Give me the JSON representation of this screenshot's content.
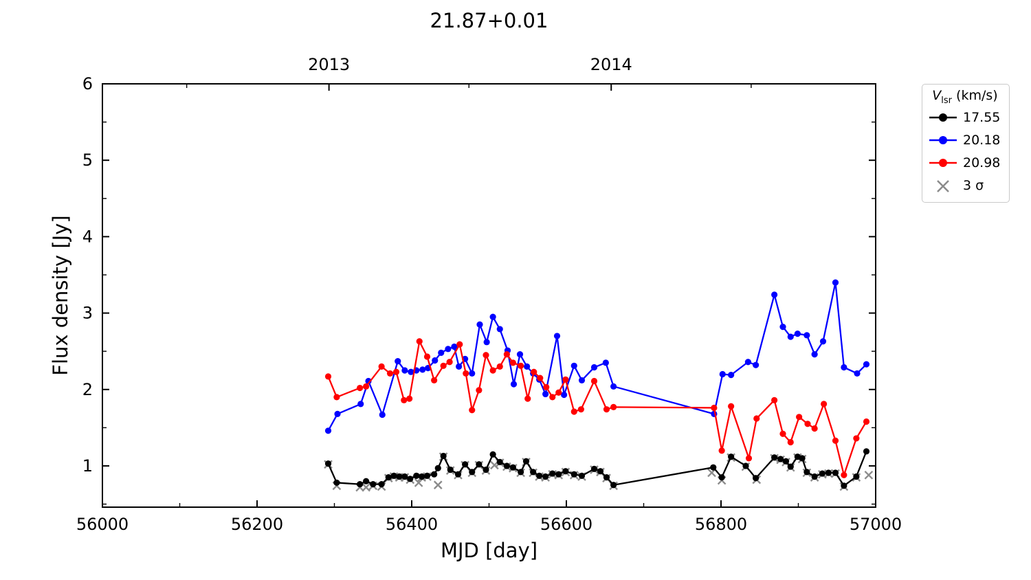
{
  "figure": {
    "title": "21.87+0.01",
    "background": "#ffffff"
  },
  "legend": {
    "title_v": "V",
    "title_sub": "lsr",
    "title_units": " (km/s)",
    "entries": [
      {
        "label": "17.55",
        "color": "#000000",
        "marker": "circle"
      },
      {
        "label": "20.18",
        "color": "#0000ff",
        "marker": "circle"
      },
      {
        "label": "20.98",
        "color": "#ff0000",
        "marker": "circle"
      },
      {
        "label": "3 σ",
        "color": "#8c8c8c",
        "marker": "x"
      }
    ]
  },
  "chart_data": {
    "type": "line",
    "title": "21.87+0.01",
    "xlabel": "MJD [day]",
    "ylabel": "Flux density [Jy]",
    "xlim": [
      56000,
      57000
    ],
    "ylim": [
      0.46,
      6.0
    ],
    "grid": false,
    "legend_position": "outside-right",
    "x_major_ticks": [
      {
        "value": 56000,
        "label": "56000"
      },
      {
        "value": 56200,
        "label": "56200"
      },
      {
        "value": 56400,
        "label": "56400"
      },
      {
        "value": 56600,
        "label": "56600"
      },
      {
        "value": 56800,
        "label": "56800"
      },
      {
        "value": 57000,
        "label": "57000"
      }
    ],
    "x_minor_ticks": [
      56100,
      56300,
      56500,
      56700,
      56900
    ],
    "y_major_ticks": [
      {
        "value": 1,
        "label": "1"
      },
      {
        "value": 2,
        "label": "2"
      },
      {
        "value": 3,
        "label": "3"
      },
      {
        "value": 4,
        "label": "4"
      },
      {
        "value": 5,
        "label": "5"
      },
      {
        "value": 6,
        "label": "6"
      }
    ],
    "y_minor_ticks": [
      0.5,
      1.5,
      2.5,
      3.5,
      4.5,
      5.5
    ],
    "top_major_ticks": [
      {
        "value": 56293,
        "label": "2013"
      },
      {
        "value": 56658,
        "label": "2014"
      }
    ],
    "top_minor_ticks": [
      56109,
      56474,
      56839
    ],
    "series": [
      {
        "name": "17.55",
        "color": "#000000",
        "marker": "circle",
        "line": true,
        "x": [
          56292,
          56303,
          56333,
          56341,
          56350,
          56361,
          56370,
          56377,
          56384,
          56391,
          56398,
          56406,
          56413,
          56420,
          56429,
          56434,
          56441,
          56450,
          56460,
          56469,
          56478,
          56487,
          56496,
          56505,
          56514,
          56523,
          56531,
          56541,
          56548,
          56557,
          56565,
          56573,
          56582,
          56590,
          56599,
          56610,
          56620,
          56636,
          56644,
          56652,
          56661,
          56790,
          56801,
          56813,
          56832,
          56845,
          56869,
          56877,
          56884,
          56890,
          56899,
          56905,
          56911,
          56921,
          56931,
          56939,
          56948,
          56959,
          56975,
          56988
        ],
        "y": [
          1.03,
          0.78,
          0.76,
          0.8,
          0.76,
          0.76,
          0.85,
          0.87,
          0.86,
          0.86,
          0.83,
          0.87,
          0.86,
          0.87,
          0.89,
          0.97,
          1.13,
          0.95,
          0.89,
          1.02,
          0.92,
          1.02,
          0.95,
          1.15,
          1.05,
          1.0,
          0.98,
          0.92,
          1.06,
          0.92,
          0.87,
          0.86,
          0.9,
          0.89,
          0.93,
          0.89,
          0.87,
          0.96,
          0.93,
          0.85,
          0.75,
          0.98,
          0.85,
          1.12,
          1.0,
          0.84,
          1.11,
          1.09,
          1.06,
          0.99,
          1.12,
          1.1,
          0.92,
          0.86,
          0.9,
          0.91,
          0.91,
          0.74,
          0.86,
          1.19
        ]
      },
      {
        "name": "20.18",
        "color": "#0000ff",
        "marker": "circle",
        "line": true,
        "x": [
          56292,
          56304,
          56334,
          56344,
          56362,
          56382,
          56391,
          56399,
          56406,
          56414,
          56421,
          56430,
          56438,
          56447,
          56455,
          56461,
          56469,
          56478,
          56488,
          56497,
          56505,
          56514,
          56524,
          56532,
          56540,
          56549,
          56557,
          56565,
          56573,
          56588,
          56597,
          56610,
          56620,
          56636,
          56651,
          56661,
          56791,
          56802,
          56813,
          56835,
          56845,
          56869,
          56880,
          56890,
          56899,
          56911,
          56921,
          56932,
          56948,
          56959,
          56976,
          56988
        ],
        "y": [
          1.46,
          1.68,
          1.81,
          2.11,
          1.67,
          2.37,
          2.25,
          2.23,
          2.25,
          2.26,
          2.28,
          2.38,
          2.48,
          2.53,
          2.56,
          2.3,
          2.4,
          2.21,
          2.85,
          2.62,
          2.95,
          2.79,
          2.51,
          2.07,
          2.46,
          2.3,
          2.21,
          2.13,
          1.94,
          2.7,
          1.93,
          2.31,
          2.12,
          2.29,
          2.35,
          2.04,
          1.68,
          2.2,
          2.19,
          2.36,
          2.32,
          3.24,
          2.82,
          2.69,
          2.73,
          2.71,
          2.46,
          2.63,
          3.4,
          2.29,
          2.21,
          2.33
        ]
      },
      {
        "name": "20.98",
        "color": "#ff0000",
        "marker": "circle",
        "line": true,
        "x": [
          56292,
          56303,
          56333,
          56341,
          56361,
          56372,
          56380,
          56390,
          56397,
          56410,
          56420,
          56429,
          56441,
          56449,
          56462,
          56470,
          56478,
          56487,
          56496,
          56505,
          56514,
          56523,
          56531,
          56541,
          56550,
          56558,
          56566,
          56574,
          56582,
          56590,
          56599,
          56610,
          56619,
          56636,
          56652,
          56661,
          56791,
          56801,
          56813,
          56836,
          56846,
          56869,
          56880,
          56890,
          56901,
          56912,
          56921,
          56933,
          56948,
          56959,
          56975,
          56988
        ],
        "y": [
          2.17,
          1.9,
          2.02,
          2.04,
          2.3,
          2.21,
          2.23,
          1.86,
          1.88,
          2.63,
          2.43,
          2.12,
          2.31,
          2.36,
          2.59,
          2.21,
          1.73,
          1.99,
          2.45,
          2.25,
          2.3,
          2.46,
          2.35,
          2.31,
          1.88,
          2.23,
          2.15,
          2.03,
          1.9,
          1.96,
          2.13,
          1.71,
          1.74,
          2.11,
          1.74,
          1.77,
          1.76,
          1.2,
          1.78,
          1.1,
          1.62,
          1.86,
          1.42,
          1.31,
          1.64,
          1.55,
          1.49,
          1.81,
          1.33,
          0.88,
          1.36,
          1.58
        ]
      },
      {
        "name": "3 σ",
        "color": "#8c8c8c",
        "marker": "x",
        "line": false,
        "x": [
          56292,
          56303,
          56333,
          56341,
          56350,
          56361,
          56370,
          56377,
          56384,
          56391,
          56398,
          56409,
          56413,
          56420,
          56434,
          56441,
          56450,
          56460,
          56469,
          56478,
          56487,
          56496,
          56507,
          56514,
          56523,
          56531,
          56541,
          56548,
          56557,
          56565,
          56573,
          56582,
          56590,
          56599,
          56610,
          56620,
          56636,
          56644,
          56652,
          56661,
          56788,
          56801,
          56813,
          56832,
          56846,
          56869,
          56877,
          56884,
          56890,
          56899,
          56905,
          56911,
          56921,
          56931,
          56939,
          56948,
          56959,
          56975,
          56991
        ],
        "y": [
          1.02,
          0.74,
          0.72,
          0.72,
          0.74,
          0.73,
          0.84,
          0.86,
          0.85,
          0.85,
          0.82,
          0.78,
          0.85,
          0.86,
          0.75,
          1.12,
          0.94,
          0.88,
          1.01,
          0.91,
          1.01,
          0.94,
          1.01,
          1.04,
          0.99,
          0.97,
          0.91,
          1.05,
          0.91,
          0.86,
          0.85,
          0.89,
          0.88,
          0.92,
          0.88,
          0.86,
          0.95,
          0.92,
          0.84,
          0.74,
          0.91,
          0.81,
          1.11,
          0.99,
          0.82,
          1.1,
          1.08,
          1.05,
          0.98,
          1.11,
          1.09,
          0.91,
          0.85,
          0.89,
          0.9,
          0.9,
          0.73,
          0.85,
          0.88
        ]
      }
    ]
  }
}
